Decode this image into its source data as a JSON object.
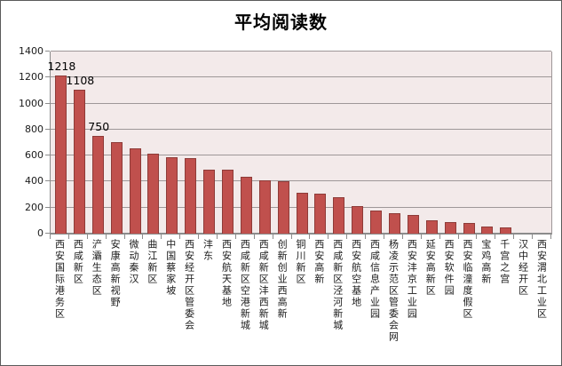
{
  "chart_data": {
    "type": "bar",
    "title": "平均阅读数",
    "categories": [
      "西安国际港务区",
      "西咸新区",
      "浐灞生态区",
      "安康高新视野",
      "微动秦汉",
      "曲江新区",
      "中国蔡家坡",
      "西安经开区管委会",
      "沣东",
      "西安航天基地",
      "西咸新区空港新城",
      "西咸新区沣西新城",
      "创新创业西高新",
      "铜川新区",
      "西安高新",
      "西咸新区泾河新城",
      "西安航空基地",
      "西咸信息产业园",
      "杨凌示范区管委会网",
      "西安沣京工业园",
      "延安高新区",
      "西安软件园",
      "西安临潼度假区",
      "宝鸡高新",
      "千宫之宫",
      "汉中经开区",
      "西安渭北工业区"
    ],
    "values": [
      1218,
      1108,
      750,
      700,
      655,
      615,
      590,
      580,
      495,
      490,
      440,
      410,
      400,
      315,
      310,
      280,
      210,
      180,
      160,
      145,
      105,
      90,
      85,
      55,
      45,
      0,
      0
    ],
    "value_labels": [
      {
        "index": 0,
        "text": "1218"
      },
      {
        "index": 1,
        "text": "1108"
      },
      {
        "index": 2,
        "text": "750"
      }
    ],
    "xlabel": "",
    "ylabel": "",
    "ylim": [
      0,
      1400
    ],
    "yticks": [
      0,
      200,
      400,
      600,
      800,
      1000,
      1200,
      1400
    ],
    "grid": true,
    "legend": "none",
    "colors": {
      "bar_fill": "#C0504D",
      "bar_border": "#8E3B38",
      "plot_bg": "#F3EAEA",
      "gridline": "#9E9798",
      "axis_line": "#8C8C8C",
      "text": "#1A1A1A",
      "outer_border": "#5A5A5A",
      "background": "#FFFFFF"
    }
  }
}
